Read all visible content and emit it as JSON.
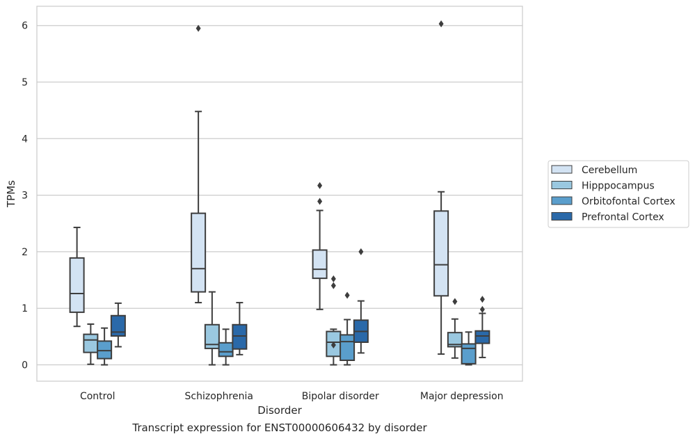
{
  "caption": "Transcript expression for ENST00000606432 by disorder",
  "chart_data": {
    "type": "boxplot",
    "xlabel": "Disorder",
    "ylabel": "TPMs",
    "ylim": [
      -0.3,
      6.35
    ],
    "yticks": [
      0,
      1,
      2,
      3,
      4,
      5,
      6
    ],
    "grid": "horizontal",
    "legend_position": "right",
    "categories": [
      "Control",
      "Schizophrenia",
      "Bipolar disorder",
      "Major depression"
    ],
    "series": [
      {
        "name": "Cerebellum",
        "color": "#d3e3f3",
        "boxes": [
          {
            "whisker_low": 0.68,
            "q1": 0.93,
            "median": 1.26,
            "q3": 1.89,
            "whisker_high": 2.43,
            "outliers": []
          },
          {
            "whisker_low": 1.1,
            "q1": 1.29,
            "median": 1.7,
            "q3": 2.68,
            "whisker_high": 4.48,
            "outliers": [
              5.95
            ]
          },
          {
            "whisker_low": 0.98,
            "q1": 1.53,
            "median": 1.69,
            "q3": 2.03,
            "whisker_high": 2.73,
            "outliers": [
              2.89,
              3.17
            ]
          },
          {
            "whisker_low": 0.19,
            "q1": 1.22,
            "median": 1.77,
            "q3": 2.72,
            "whisker_high": 3.06,
            "outliers": [
              6.03
            ]
          }
        ]
      },
      {
        "name": "Hipppocampus",
        "color": "#9ac8e0",
        "boxes": [
          {
            "whisker_low": 0.01,
            "q1": 0.22,
            "median": 0.44,
            "q3": 0.54,
            "whisker_high": 0.72,
            "outliers": []
          },
          {
            "whisker_low": 0.0,
            "q1": 0.29,
            "median": 0.36,
            "q3": 0.71,
            "whisker_high": 1.29,
            "outliers": []
          },
          {
            "whisker_low": 0.0,
            "q1": 0.15,
            "median": 0.4,
            "q3": 0.59,
            "whisker_high": 0.63,
            "outliers": [
              0.35,
              1.4,
              1.52
            ]
          },
          {
            "whisker_low": 0.12,
            "q1": 0.32,
            "median": 0.36,
            "q3": 0.57,
            "whisker_high": 0.81,
            "outliers": [
              1.12
            ]
          }
        ]
      },
      {
        "name": "Orbitofontal Cortex",
        "color": "#5a9ecc",
        "boxes": [
          {
            "whisker_low": 0.0,
            "q1": 0.11,
            "median": 0.25,
            "q3": 0.42,
            "whisker_high": 0.65,
            "outliers": []
          },
          {
            "whisker_low": 0.0,
            "q1": 0.15,
            "median": 0.23,
            "q3": 0.39,
            "whisker_high": 0.63,
            "outliers": []
          },
          {
            "whisker_low": 0.0,
            "q1": 0.08,
            "median": 0.41,
            "q3": 0.53,
            "whisker_high": 0.8,
            "outliers": [
              1.23
            ]
          },
          {
            "whisker_low": 0.0,
            "q1": 0.02,
            "median": 0.29,
            "q3": 0.37,
            "whisker_high": 0.58,
            "outliers": []
          }
        ]
      },
      {
        "name": "Prefrontal Cortex",
        "color": "#2a69a9",
        "boxes": [
          {
            "whisker_low": 0.32,
            "q1": 0.51,
            "median": 0.58,
            "q3": 0.87,
            "whisker_high": 1.09,
            "outliers": []
          },
          {
            "whisker_low": 0.18,
            "q1": 0.28,
            "median": 0.51,
            "q3": 0.71,
            "whisker_high": 1.1,
            "outliers": []
          },
          {
            "whisker_low": 0.21,
            "q1": 0.4,
            "median": 0.59,
            "q3": 0.79,
            "whisker_high": 1.13,
            "outliers": [
              2.0
            ]
          },
          {
            "whisker_low": 0.13,
            "q1": 0.38,
            "median": 0.51,
            "q3": 0.6,
            "whisker_high": 0.91,
            "outliers": [
              0.98,
              1.16
            ]
          }
        ]
      }
    ]
  }
}
